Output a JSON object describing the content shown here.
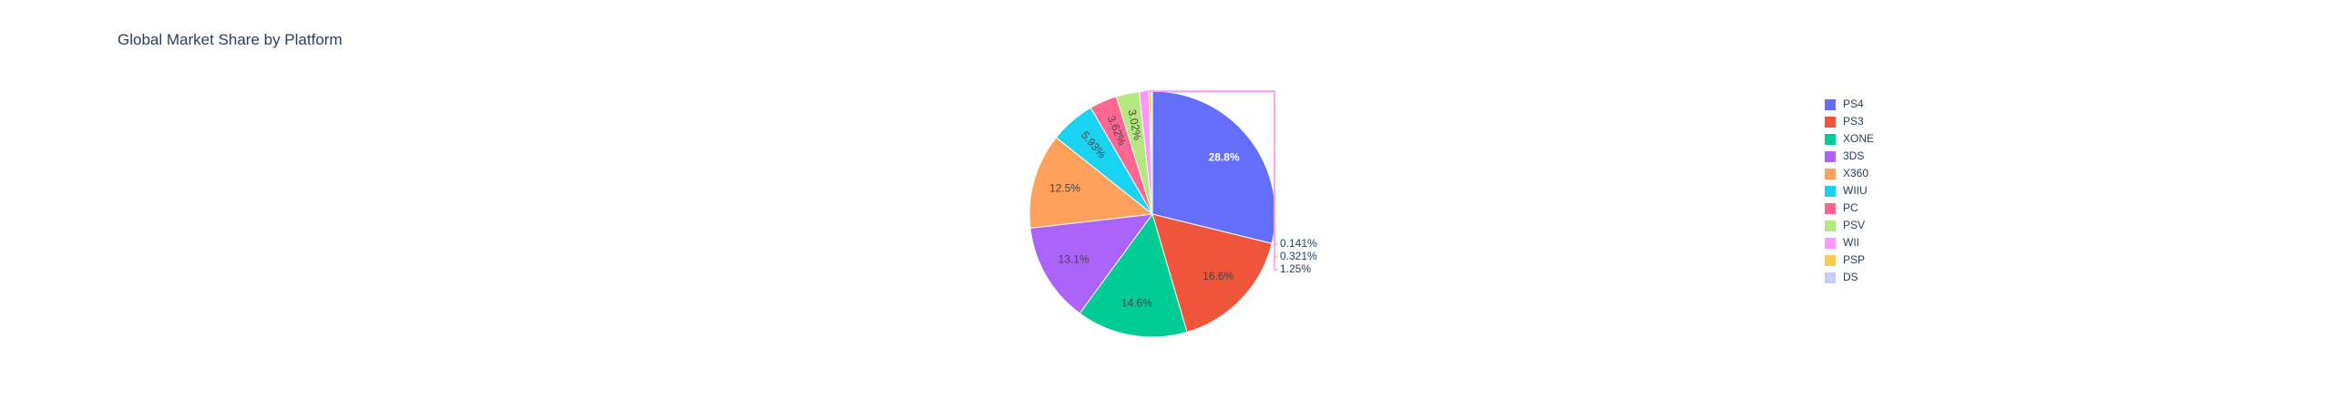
{
  "chart_data": {
    "type": "pie",
    "title": "Global Market Share by Platform",
    "slices": [
      {
        "label": "PS4",
        "percent": 28.8,
        "percent_text": "28.8%",
        "color": "#636efa"
      },
      {
        "label": "PS3",
        "percent": 16.6,
        "percent_text": "16.6%",
        "color": "#EF553B"
      },
      {
        "label": "XONE",
        "percent": 14.6,
        "percent_text": "14.6%",
        "color": "#00cc96"
      },
      {
        "label": "3DS",
        "percent": 13.1,
        "percent_text": "13.1%",
        "color": "#ab63fa"
      },
      {
        "label": "X360",
        "percent": 12.5,
        "percent_text": "12.5%",
        "color": "#FFA15A"
      },
      {
        "label": "WIIU",
        "percent": 5.93,
        "percent_text": "5.93%",
        "color": "#19d3f3"
      },
      {
        "label": "PC",
        "percent": 3.62,
        "percent_text": "3.62%",
        "color": "#FF6692"
      },
      {
        "label": "PSV",
        "percent": 3.02,
        "percent_text": "3.02%",
        "color": "#B6E880"
      },
      {
        "label": "WII",
        "percent": 1.25,
        "percent_text": "1.25%",
        "color": "#FF97FF"
      },
      {
        "label": "PSP",
        "percent": 0.321,
        "percent_text": "0.321%",
        "color": "#FECB52"
      },
      {
        "label": "DS",
        "percent": 0.141,
        "percent_text": "0.141%",
        "color": "#c6cdf7"
      }
    ],
    "direction": "clockwise",
    "rotation_start": "top",
    "legend_position": "right"
  }
}
